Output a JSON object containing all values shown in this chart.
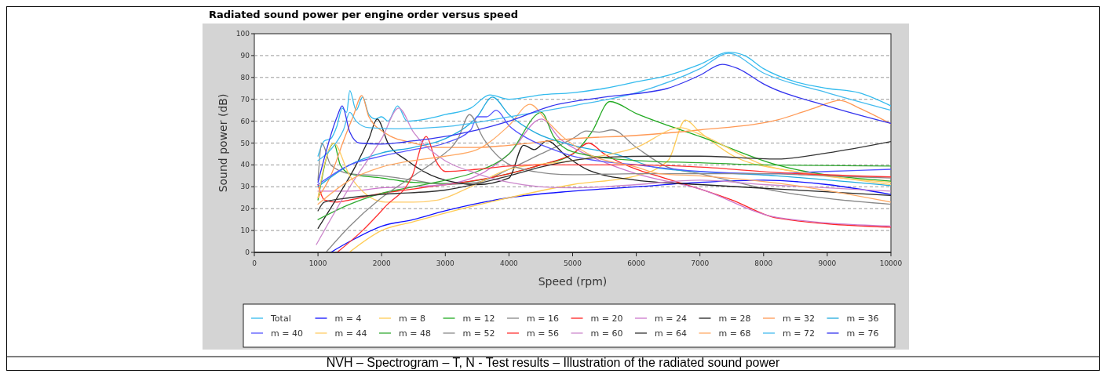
{
  "chart_data": {
    "type": "line",
    "title": "Radiated sound power per engine order versus speed",
    "xlabel": "Speed (rpm)",
    "ylabel": "Sound power (dB)",
    "annotations": [
      "NVH – Spectrogram – T, N - Test results – Illustration of the radiated sound power"
    ],
    "xlim": [
      0,
      10000
    ],
    "ylim": [
      0,
      100
    ],
    "xticks": [
      0,
      1000,
      2000,
      3000,
      4000,
      5000,
      6000,
      7000,
      8000,
      9000,
      10000
    ],
    "yticks": [
      0,
      10,
      20,
      30,
      40,
      50,
      60,
      70,
      80,
      90,
      100
    ],
    "grid": "y",
    "legend": "bottom",
    "series": [
      {
        "name": "Total",
        "color": "#33bbee",
        "x": [
          1000,
          1100,
          1200,
          1300,
          1380,
          1450,
          1500,
          1600,
          1700,
          1800,
          1900,
          2000,
          2100,
          2250,
          2400,
          2700,
          3000,
          3400,
          3700,
          4000,
          4500,
          5000,
          5500,
          6000,
          6500,
          7000,
          7450,
          7700,
          8000,
          8500,
          9000,
          9500,
          10000
        ],
        "values": [
          44,
          51,
          52,
          58,
          66,
          64,
          74,
          65,
          71,
          63,
          61,
          62,
          60,
          67,
          60,
          61,
          63,
          66,
          72,
          70,
          72,
          73,
          75,
          78,
          81,
          86,
          91.5,
          90,
          84,
          78,
          75,
          73,
          67
        ]
      },
      {
        "name": "m = 4",
        "color": "#1111ff",
        "x": [
          1200,
          1500,
          2000,
          2500,
          3000,
          4000,
          5000,
          6000,
          7000,
          8000,
          9000,
          10000
        ],
        "values": [
          0,
          5,
          12,
          15,
          19,
          25,
          28,
          30,
          32,
          33,
          31,
          26.5
        ]
      },
      {
        "name": "m = 8",
        "color": "#ffcc55",
        "x": [
          1490,
          2000,
          2500,
          3000,
          4000,
          5000,
          6000,
          6500,
          6770,
          7000,
          7600,
          8500,
          10000
        ],
        "values": [
          0,
          10,
          14,
          18,
          25,
          31,
          35,
          42,
          60.5,
          55,
          43,
          37,
          32
        ]
      },
      {
        "name": "m = 12",
        "color": "#22aa22",
        "x": [
          1000,
          1150,
          1250,
          1350,
          1500,
          2000,
          2500,
          3000,
          4000,
          4500,
          5000,
          5300,
          5585,
          6000,
          6500,
          7000,
          8210,
          10000
        ],
        "values": [
          24,
          45,
          50,
          40,
          36,
          34,
          32,
          31.5,
          36,
          40,
          45,
          55,
          69,
          63.5,
          58,
          53,
          40,
          32.6
        ]
      },
      {
        "name": "m = 16",
        "color": "#888888",
        "x": [
          1000,
          1060,
          1200,
          1500,
          2000,
          2500,
          3000,
          3500,
          4000,
          4500,
          5000,
          5215,
          5420,
          5620,
          6000,
          6490,
          7000,
          8210,
          10000
        ],
        "values": [
          33,
          50,
          40,
          36,
          35,
          33,
          31,
          32,
          38,
          45,
          52,
          55.5,
          55,
          56,
          48,
          39,
          36,
          28,
          22
        ]
      },
      {
        "name": "m = 20",
        "color": "#ff2222",
        "x": [
          1000,
          1100,
          1300,
          1500,
          2000,
          2500,
          3000,
          3500,
          4000,
          4500,
          5000,
          5250,
          5500,
          6000,
          6360,
          7000,
          7500,
          8210,
          10000
        ],
        "values": [
          31,
          24,
          23,
          24,
          27,
          29,
          31,
          33,
          36,
          40,
          45,
          50,
          45,
          38,
          34.7,
          29,
          24,
          15.7,
          11.5
        ]
      },
      {
        "name": "m = 24",
        "color": "#cc77cc",
        "x": [
          1000,
          1500,
          2000,
          2500,
          3000,
          3500,
          4000,
          4510,
          4800,
          5200,
          5600,
          6000,
          7000,
          8210,
          10000
        ],
        "values": [
          28,
          28,
          29.5,
          30,
          31,
          35,
          45,
          61,
          52,
          45,
          40,
          36,
          29,
          16,
          12
        ]
      },
      {
        "name": "m = 28",
        "color": "#222222",
        "x": [
          1000,
          1300,
          1600,
          1800,
          1930,
          2100,
          2400,
          2890,
          3500,
          4000,
          4230,
          4400,
          4600,
          4900,
          5250,
          6000,
          7000,
          8210,
          10000
        ],
        "values": [
          11,
          25,
          40,
          52,
          61,
          50,
          42,
          34,
          31,
          34,
          49,
          47,
          51,
          44,
          37.6,
          33,
          31,
          29,
          26
        ]
      },
      {
        "name": "m = 32",
        "color": "#ff9955",
        "x": [
          1000,
          1200,
          1400,
          1550,
          1690,
          1800,
          2060,
          2500,
          2890,
          3500,
          4000,
          5000,
          6000,
          7000,
          8210,
          8800,
          9200,
          9500,
          10000
        ],
        "values": [
          25,
          35,
          51,
          62,
          71.7,
          62,
          54.5,
          50,
          48,
          48,
          49,
          52,
          53.5,
          56,
          60.5,
          66,
          69.5,
          66,
          58.8
        ]
      },
      {
        "name": "m = 36",
        "color": "#22aadd",
        "x": [
          1000,
          1500,
          2000,
          2500,
          3000,
          3500,
          3740,
          4000,
          4430,
          5000,
          5660,
          6360,
          8210,
          10000
        ],
        "values": [
          30,
          40,
          45.5,
          48,
          52,
          62,
          71,
          63,
          54.5,
          49,
          45,
          38.5,
          35,
          30.5
        ]
      },
      {
        "name": "m = 40",
        "color": "#5555ff",
        "x": [
          1000,
          1500,
          2000,
          2500,
          3000,
          3400,
          3500,
          3650,
          3800,
          4000,
          4300,
          4700,
          5000,
          6000,
          7000,
          8000,
          9000,
          10000
        ],
        "values": [
          31,
          40,
          44,
          47,
          50,
          56,
          62,
          62,
          65,
          58,
          52,
          47,
          44,
          40,
          37,
          36,
          37,
          38
        ]
      },
      {
        "name": "m = 44",
        "color": "#ffcc66",
        "x": [
          1000,
          1100,
          1245,
          1500,
          2060,
          2500,
          2890,
          3400,
          4000,
          5000,
          6000,
          6690,
          7000,
          8000,
          9000,
          10000
        ],
        "values": [
          25,
          40,
          50,
          35,
          23,
          23,
          24,
          30,
          38,
          42,
          48,
          57,
          54,
          40,
          35,
          31
        ]
      },
      {
        "name": "m = 48",
        "color": "#33aa33",
        "x": [
          1000,
          1500,
          2000,
          2500,
          3000,
          3500,
          4000,
          4510,
          4700,
          5000,
          6000,
          7000,
          8000,
          10000
        ],
        "values": [
          15,
          22,
          27,
          30,
          33,
          37,
          45,
          64,
          53,
          46,
          42,
          41,
          40,
          39.5
        ]
      },
      {
        "name": "m = 52",
        "color": "#8a8a8a",
        "x": [
          1125,
          1500,
          2000,
          2500,
          2890,
          3200,
          3380,
          3600,
          4020,
          4640,
          5000,
          6000,
          7000,
          8000,
          9000,
          10000
        ],
        "values": [
          0,
          12,
          25,
          35,
          43,
          52,
          63,
          52,
          40,
          36,
          35.5,
          36,
          36,
          36,
          35,
          34
        ]
      },
      {
        "name": "m = 56",
        "color": "#ff3333",
        "x": [
          1300,
          1700,
          2060,
          2480,
          2700,
          2850,
          3000,
          3500,
          4000,
          4500,
          5000,
          6000,
          7000,
          8210,
          10000
        ],
        "values": [
          0,
          10,
          21,
          35,
          53,
          42,
          37,
          38,
          39.5,
          40,
          40,
          40,
          39,
          36.5,
          34.5
        ]
      },
      {
        "name": "m = 60",
        "color": "#cc88cc",
        "x": [
          975,
          1500,
          2000,
          2270,
          2500,
          2890,
          3500,
          4000,
          4500,
          5000,
          5500,
          6000,
          7000,
          8000,
          9000,
          10000
        ],
        "values": [
          3.6,
          30,
          52,
          66,
          55,
          44,
          36,
          32,
          30,
          29.5,
          30,
          31,
          33,
          31,
          29.5,
          28
        ]
      },
      {
        "name": "m = 64",
        "color": "#333333",
        "x": [
          1000,
          1100,
          1500,
          2000,
          3000,
          4000,
          4500,
          5000,
          5500,
          6360,
          7000,
          8210,
          9000,
          10000
        ],
        "values": [
          19,
          23,
          25,
          26.5,
          28.5,
          35,
          39,
          42,
          43.5,
          44,
          44,
          42.7,
          45.5,
          50.7
        ]
      },
      {
        "name": "m = 68",
        "color": "#ffaa66",
        "x": [
          1000,
          1500,
          2000,
          2500,
          3000,
          3500,
          4000,
          4330,
          4600,
          4840,
          5250,
          6000,
          6360,
          7000,
          8210,
          10000
        ],
        "values": [
          22,
          33,
          39,
          42,
          44,
          47,
          58,
          67.7,
          60,
          53,
          45,
          39,
          36,
          35,
          31.7,
          23
        ]
      },
      {
        "name": "m = 72",
        "color": "#44bbee",
        "x": [
          1000,
          1200,
          1400,
          1500,
          1600,
          1800,
          2200,
          3000,
          4000,
          5000,
          6000,
          7000,
          7450,
          8000,
          9000,
          10000
        ],
        "values": [
          42,
          47,
          56,
          64,
          60,
          57,
          56.5,
          57.5,
          62,
          67,
          73,
          84,
          91,
          82,
          73,
          65
        ]
      },
      {
        "name": "m = 76",
        "color": "#3333ee",
        "x": [
          1000,
          1300,
          1380,
          1500,
          1650,
          2000,
          2500,
          2780,
          3500,
          4000,
          4670,
          5500,
          6490,
          7000,
          7350,
          7600,
          8000,
          9000,
          10000
        ],
        "values": [
          32,
          62,
          67,
          55,
          50,
          49.5,
          51,
          52,
          56,
          60,
          67,
          71,
          75,
          81,
          86,
          84,
          77,
          67,
          59
        ]
      }
    ]
  }
}
